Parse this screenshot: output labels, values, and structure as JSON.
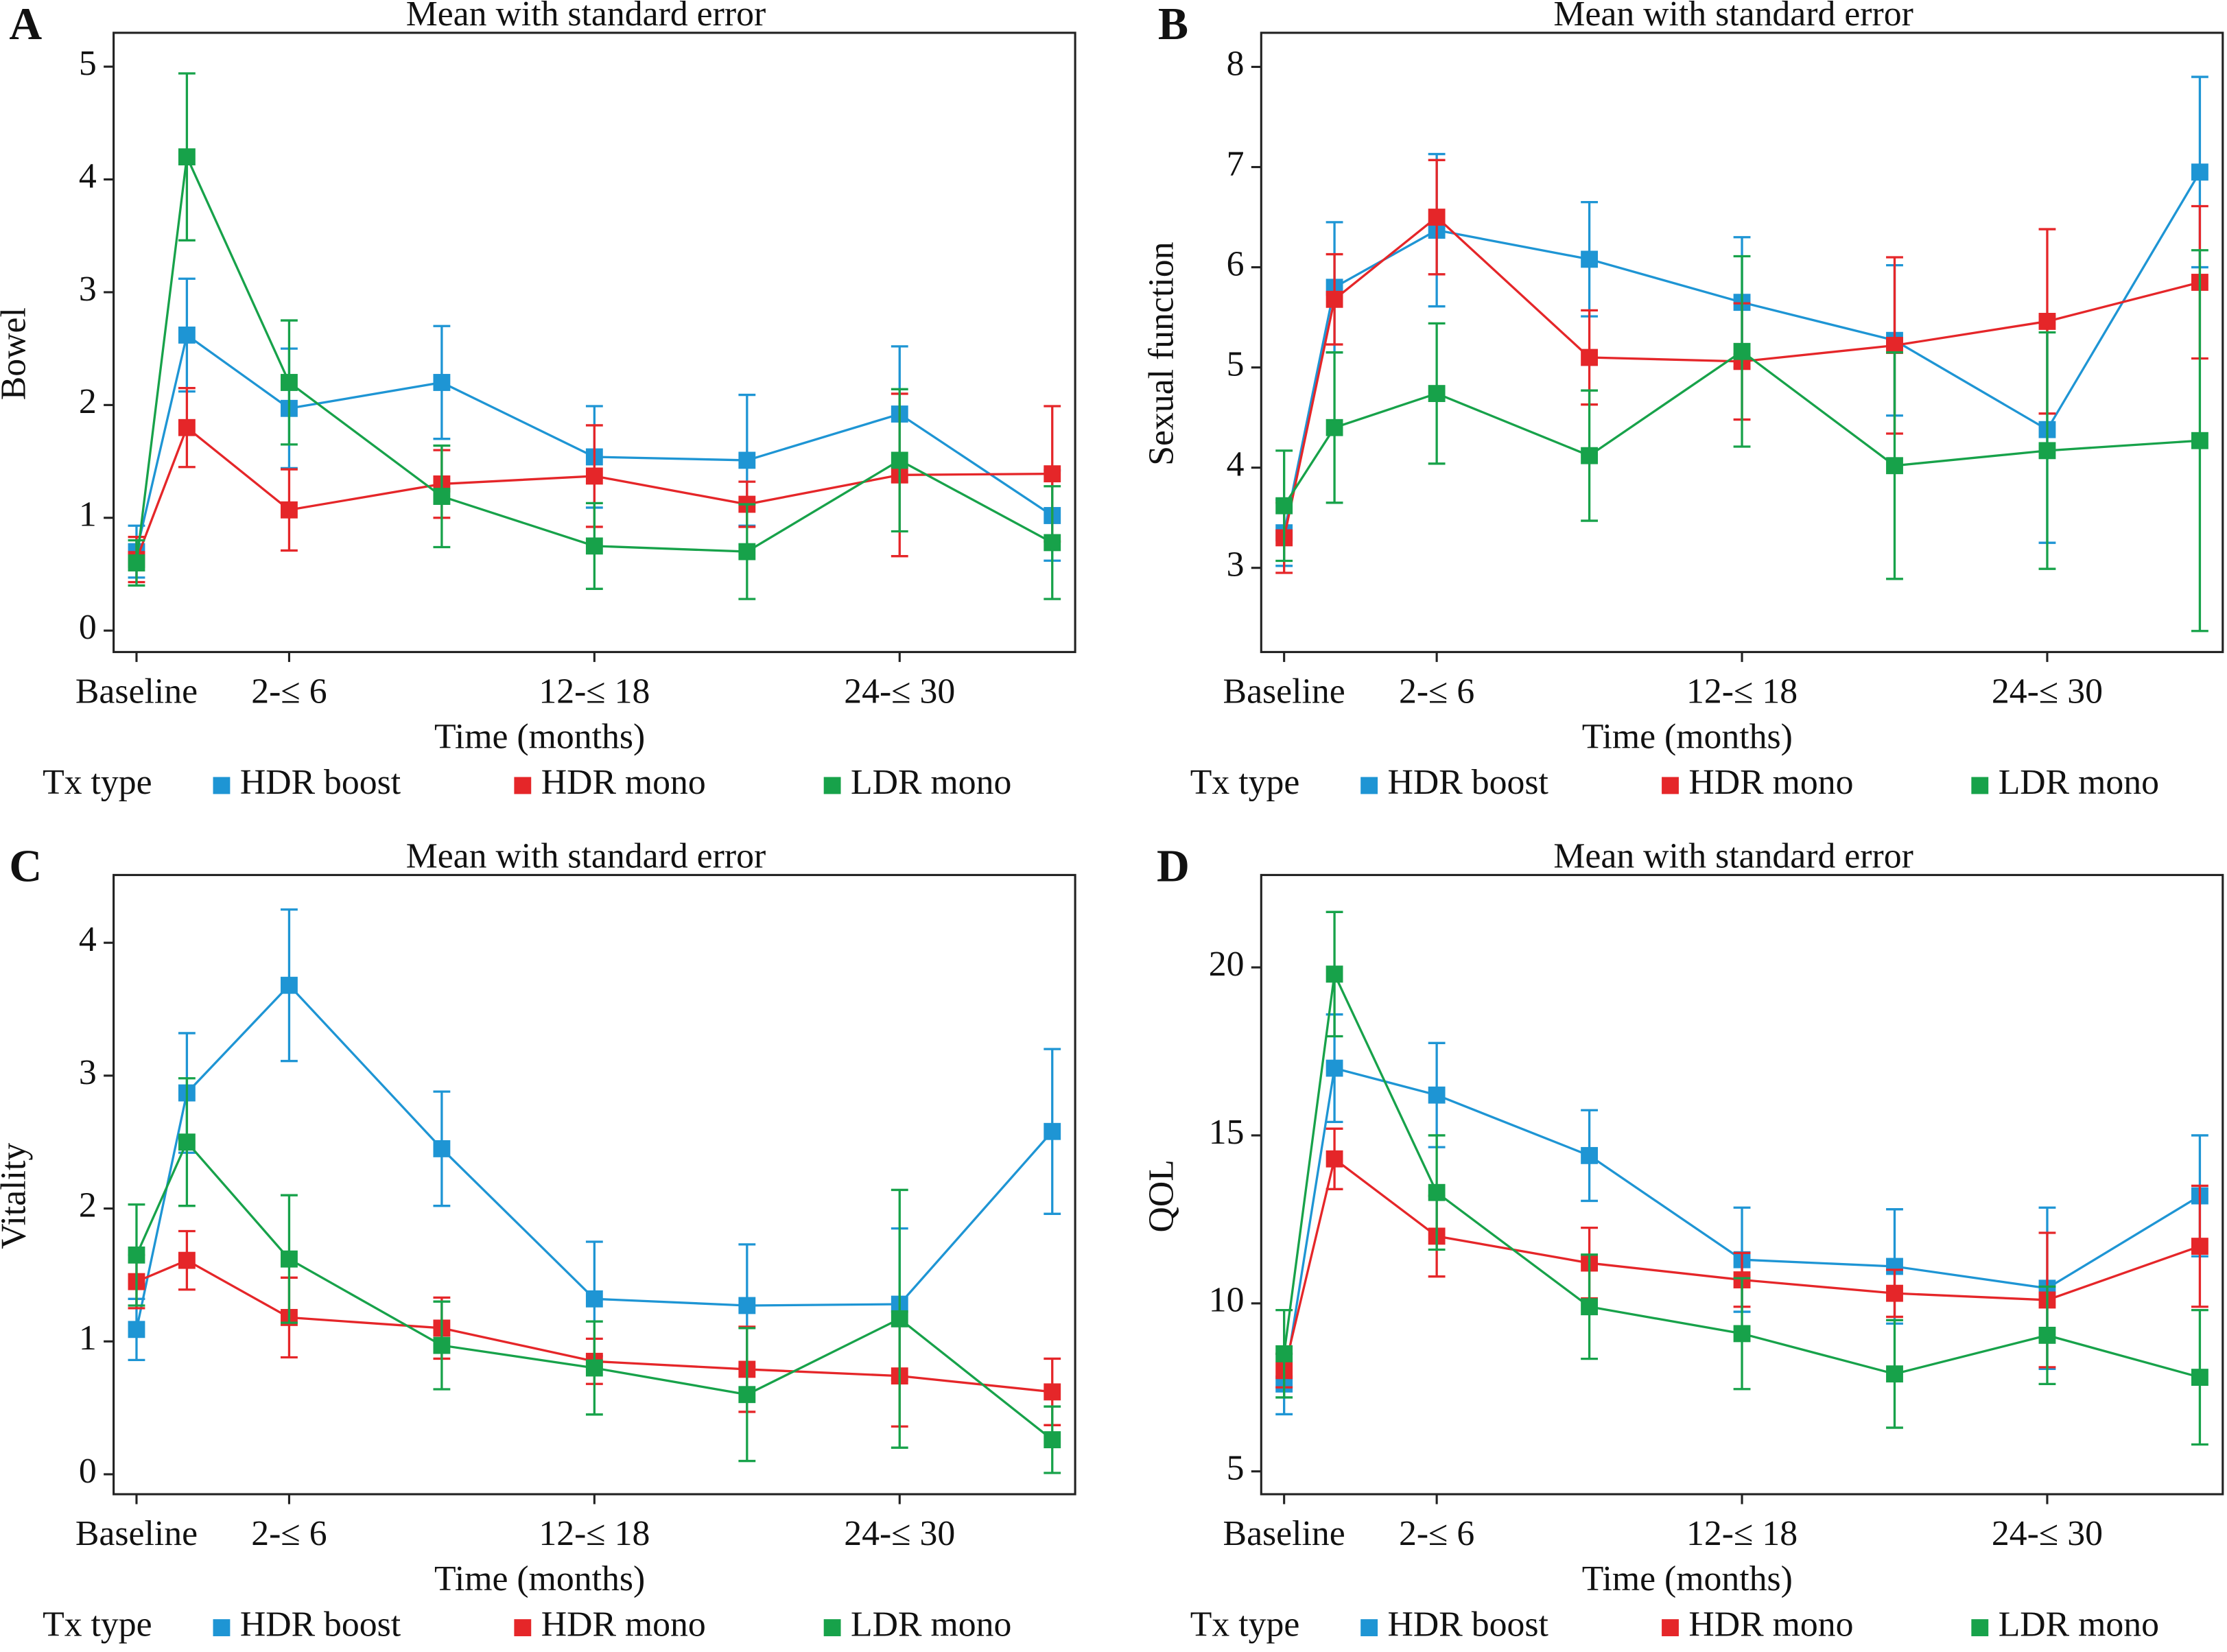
{
  "chart_data": [
    {
      "type": "line",
      "label": "A",
      "title": "Mean with standard error",
      "ylabel": "Bowel",
      "xlabel": "Time (months)",
      "legend_title": "Tx type",
      "x": [
        0,
        0.33,
        1,
        2,
        3,
        4,
        5,
        6
      ],
      "xlim": [
        -0.15,
        6.15
      ],
      "xticks": [
        {
          "value": 0,
          "label": "Baseline"
        },
        {
          "value": 1,
          "label": "2-≤ 6"
        },
        {
          "value": 3,
          "label": "12-≤ 18"
        },
        {
          "value": 5,
          "label": "24-≤ 30"
        }
      ],
      "ylim": [
        -0.19,
        5.3
      ],
      "yticks": [
        0,
        1,
        2,
        3,
        4,
        5
      ],
      "series": [
        {
          "name": "HDR boost",
          "color": "#1e95d4",
          "values": [
            0.7,
            2.62,
            1.97,
            2.2,
            1.54,
            1.51,
            1.92,
            1.02
          ],
          "errors": [
            0.23,
            0.5,
            0.53,
            0.5,
            0.45,
            0.58,
            0.6,
            0.4
          ]
        },
        {
          "name": "HDR mono",
          "color": "#e52629",
          "values": [
            0.63,
            1.8,
            1.07,
            1.3,
            1.37,
            1.12,
            1.38,
            1.39
          ],
          "errors": [
            0.2,
            0.35,
            0.36,
            0.3,
            0.45,
            0.2,
            0.72,
            0.6
          ]
        },
        {
          "name": "LDR mono",
          "color": "#17a24a",
          "values": [
            0.6,
            4.2,
            2.2,
            1.19,
            0.75,
            0.7,
            1.51,
            0.78
          ],
          "errors": [
            0.2,
            0.74,
            0.55,
            0.45,
            0.38,
            0.42,
            0.63,
            0.5
          ]
        }
      ]
    },
    {
      "type": "line",
      "label": "B",
      "title": "Mean with standard error",
      "ylabel": "Sexual function",
      "xlabel": "Time (months)",
      "legend_title": "Tx type",
      "x": [
        0,
        0.33,
        1,
        2,
        3,
        4,
        5,
        6
      ],
      "xlim": [
        -0.15,
        6.15
      ],
      "xticks": [
        {
          "value": 0,
          "label": "Baseline"
        },
        {
          "value": 1,
          "label": "2-≤ 6"
        },
        {
          "value": 3,
          "label": "12-≤ 18"
        },
        {
          "value": 5,
          "label": "24-≤ 30"
        }
      ],
      "ylim": [
        2.16,
        8.34
      ],
      "yticks": [
        3,
        4,
        5,
        6,
        7,
        8
      ],
      "series": [
        {
          "name": "HDR boost",
          "color": "#1e95d4",
          "values": [
            3.35,
            5.8,
            6.37,
            6.08,
            5.65,
            5.27,
            4.38,
            6.95
          ],
          "errors": [
            0.33,
            0.65,
            0.76,
            0.57,
            0.65,
            0.75,
            1.13,
            0.95
          ]
        },
        {
          "name": "HDR mono",
          "color": "#e52629",
          "values": [
            3.3,
            5.68,
            6.5,
            5.1,
            5.06,
            5.22,
            5.46,
            5.85
          ],
          "errors": [
            0.35,
            0.45,
            0.57,
            0.47,
            0.58,
            0.88,
            0.92,
            0.76
          ]
        },
        {
          "name": "LDR mono",
          "color": "#17a24a",
          "values": [
            3.62,
            4.4,
            4.74,
            4.12,
            5.16,
            4.02,
            4.17,
            4.27
          ],
          "errors": [
            0.55,
            0.75,
            0.7,
            0.65,
            0.95,
            1.13,
            1.18,
            1.9
          ]
        }
      ]
    },
    {
      "type": "line",
      "label": "C",
      "title": "Mean with standard error",
      "ylabel": "Vitality",
      "xlabel": "Time (months)",
      "legend_title": "Tx type",
      "x": [
        0,
        0.33,
        1,
        2,
        3,
        4,
        5,
        6
      ],
      "xlim": [
        -0.15,
        6.15
      ],
      "xticks": [
        {
          "value": 0,
          "label": "Baseline"
        },
        {
          "value": 1,
          "label": "2-≤ 6"
        },
        {
          "value": 3,
          "label": "12-≤ 18"
        },
        {
          "value": 5,
          "label": "24-≤ 30"
        }
      ],
      "ylim": [
        -0.15,
        4.51
      ],
      "yticks": [
        0,
        1,
        2,
        3,
        4
      ],
      "series": [
        {
          "name": "HDR boost",
          "color": "#1e95d4",
          "values": [
            1.09,
            2.87,
            3.68,
            2.45,
            1.32,
            1.27,
            1.28,
            2.58
          ],
          "errors": [
            0.23,
            0.45,
            0.57,
            0.43,
            0.43,
            0.46,
            0.57,
            0.62
          ]
        },
        {
          "name": "HDR mono",
          "color": "#e52629",
          "values": [
            1.45,
            1.61,
            1.18,
            1.1,
            0.85,
            0.79,
            0.74,
            0.62
          ],
          "errors": [
            0.2,
            0.22,
            0.3,
            0.23,
            0.17,
            0.32,
            0.38,
            0.25
          ]
        },
        {
          "name": "LDR mono",
          "color": "#17a24a",
          "values": [
            1.65,
            2.5,
            1.62,
            0.97,
            0.8,
            0.6,
            1.17,
            0.26
          ],
          "errors": [
            0.38,
            0.48,
            0.48,
            0.33,
            0.35,
            0.5,
            0.97,
            0.25
          ]
        }
      ]
    },
    {
      "type": "line",
      "label": "D",
      "title": "Mean with standard error",
      "ylabel": "QOL",
      "xlabel": "Time (months)",
      "legend_title": "Tx type",
      "x": [
        0,
        0.33,
        1,
        2,
        3,
        4,
        5,
        6
      ],
      "xlim": [
        -0.15,
        6.15
      ],
      "xticks": [
        {
          "value": 0,
          "label": "Baseline"
        },
        {
          "value": 1,
          "label": "2-≤ 6"
        },
        {
          "value": 3,
          "label": "12-≤ 18"
        },
        {
          "value": 5,
          "label": "24-≤ 30"
        }
      ],
      "ylim": [
        4.32,
        22.75
      ],
      "yticks": [
        5,
        10,
        15,
        20
      ],
      "series": [
        {
          "name": "HDR boost",
          "color": "#1e95d4",
          "values": [
            7.6,
            17,
            16.2,
            14.4,
            11.3,
            11.1,
            10.45,
            13.2
          ],
          "errors": [
            0.9,
            1.6,
            1.55,
            1.35,
            1.55,
            1.7,
            2.4,
            1.8
          ]
        },
        {
          "name": "HDR mono",
          "color": "#e52629",
          "values": [
            8,
            14.3,
            12,
            11.2,
            10.7,
            10.3,
            10.1,
            11.7
          ],
          "errors": [
            0.5,
            0.9,
            1.2,
            1.05,
            0.8,
            0.7,
            2.0,
            1.8
          ]
        },
        {
          "name": "LDR mono",
          "color": "#17a24a",
          "values": [
            8.5,
            19.8,
            13.3,
            9.9,
            9.1,
            7.9,
            9.05,
            7.8
          ],
          "errors": [
            1.3,
            1.85,
            1.7,
            1.55,
            1.65,
            1.6,
            1.45,
            2.0
          ]
        }
      ]
    }
  ]
}
